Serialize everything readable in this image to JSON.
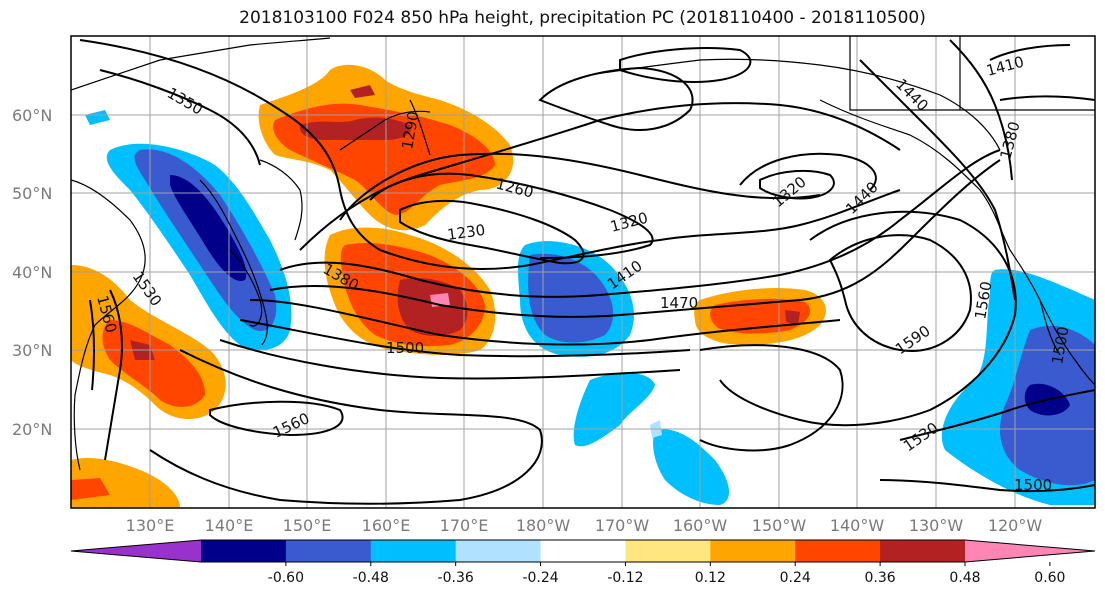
{
  "title": "2018103100 F024 850 hPa height, precipitation PC (2018110400 - 2018110500)",
  "latitude_labels": [
    "60°N",
    "50°N",
    "40°N",
    "30°N",
    "20°N"
  ],
  "longitude_labels": [
    "130°E",
    "140°E",
    "150°E",
    "160°E",
    "170°E",
    "180°W",
    "170°W",
    "160°W",
    "150°W",
    "140°W",
    "130°W",
    "120°W"
  ],
  "contour_labels": [
    "1350",
    "1290",
    "1260",
    "1230",
    "1320",
    "1320",
    "1410",
    "1380",
    "1470",
    "1500",
    "1530",
    "1560",
    "1560",
    "1440",
    "1440",
    "1410",
    "1380",
    "1590",
    "1530",
    "1560",
    "1500",
    "1500"
  ],
  "colorbar": {
    "ticks": [
      "-0.60",
      "-0.48",
      "-0.36",
      "-0.24",
      "-0.12",
      "0.12",
      "0.24",
      "0.36",
      "0.48",
      "0.60"
    ],
    "colors": [
      "#9932cc",
      "#00008b",
      "#3a5bd0",
      "#00bfff",
      "#b0e2ff",
      "#ffffff",
      "#ffe680",
      "#ffa500",
      "#ff4500",
      "#b22222",
      "#ff85b5"
    ]
  },
  "colors": {
    "grid": "#a0a0a0",
    "contour": "#000000",
    "coast": "#000000"
  }
}
